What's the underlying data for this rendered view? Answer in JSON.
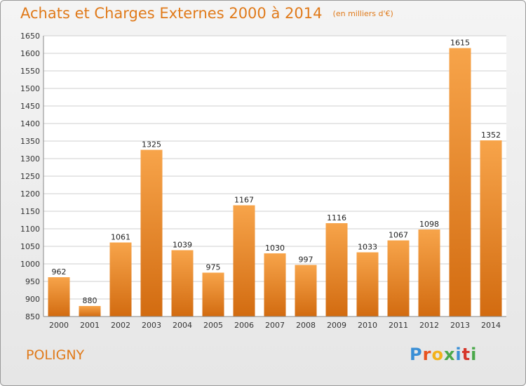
{
  "title": "Achats et Charges Externes 2000 à 2014",
  "subtitle": "(en milliers d'€)",
  "city": "POLIGNY",
  "logo": {
    "text": "Proxiti",
    "colors": [
      "#3a8fd6",
      "#e8531f",
      "#f2b21c",
      "#4aa84a",
      "#3a8fd6",
      "#d6372b",
      "#4aa84a"
    ]
  },
  "colors": {
    "title": "#e07a1a",
    "bar_top": "#f7a44a",
    "bar_bottom": "#d26b10",
    "grid": "#cfcfcf"
  },
  "chart_data": {
    "type": "bar",
    "categories": [
      "2000",
      "2001",
      "2002",
      "2003",
      "2004",
      "2005",
      "2006",
      "2007",
      "2008",
      "2009",
      "2010",
      "2011",
      "2012",
      "2013",
      "2014"
    ],
    "values": [
      962,
      880,
      1061,
      1325,
      1039,
      975,
      1167,
      1030,
      997,
      1116,
      1033,
      1067,
      1098,
      1615,
      1352
    ],
    "ylim": [
      850,
      1650
    ],
    "yticks": [
      850,
      900,
      950,
      1000,
      1050,
      1100,
      1150,
      1200,
      1250,
      1300,
      1350,
      1400,
      1450,
      1500,
      1550,
      1600,
      1650
    ],
    "grid": true,
    "xlabel": "",
    "ylabel": ""
  }
}
